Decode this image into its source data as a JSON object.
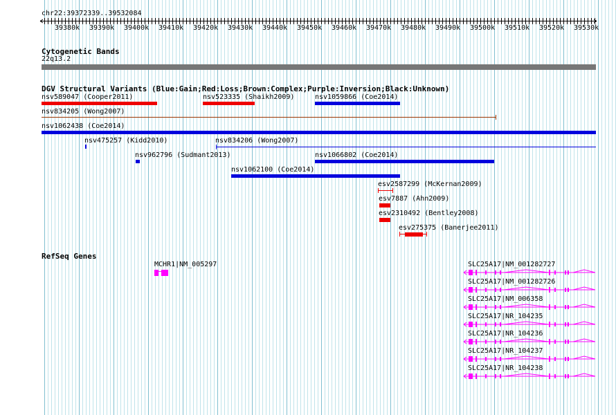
{
  "coords_label": "chr22:39372339..39532084",
  "ruler_ticks": [
    "39380k",
    "39390k",
    "39400k",
    "39410k",
    "39420k",
    "39430k",
    "39440k",
    "39450k",
    "39460k",
    "39470k",
    "39480k",
    "39490k",
    "39500k",
    "39510k",
    "39520k",
    "39530k"
  ],
  "cyto": {
    "title": "Cytogenetic Bands",
    "band": "22q13.2"
  },
  "dgv": {
    "title": "DGV Structural Variants (Blue:Gain;Red:Loss;Brown:Complex;Purple:Inversion;Black:Unknown)",
    "variants": [
      {
        "label": "nsv589047 (Cooper2011)",
        "type": "loss"
      },
      {
        "label": "nsv523335 (Shaikh2009)",
        "type": "loss"
      },
      {
        "label": "nsv1059866 (Coe2014)",
        "type": "gain"
      },
      {
        "label": "nsv834205 (Wong2007)",
        "type": "complex"
      },
      {
        "label": "nsv1062438 (Coe2014)",
        "type": "gain"
      },
      {
        "label": "nsv475257 (Kidd2010)",
        "type": "gain"
      },
      {
        "label": "nsv834206 (Wong2007)",
        "type": "gain"
      },
      {
        "label": "nsv962796 (Sudmant2013)",
        "type": "gain"
      },
      {
        "label": "nsv1066802 (Coe2014)",
        "type": "gain"
      },
      {
        "label": "nsv1062100 (Coe2014)",
        "type": "gain"
      },
      {
        "label": "esv2587299 (McKernan2009)",
        "type": "loss"
      },
      {
        "label": "esv7887 (Ahn2009)",
        "type": "loss"
      },
      {
        "label": "esv2310492 (Bentley2008)",
        "type": "loss"
      },
      {
        "label": "esv275375 (Banerjee2011)",
        "type": "loss"
      }
    ]
  },
  "refseq": {
    "title": "RefSeq Genes",
    "genes": [
      {
        "label": "MCHR1|NM_005297"
      },
      {
        "label": "SLC25A17|NM_001282727"
      },
      {
        "label": "SLC25A17|NM_001282726"
      },
      {
        "label": "SLC25A17|NM_006358"
      },
      {
        "label": "SLC25A17|NR_104235"
      },
      {
        "label": "SLC25A17|NR_104236"
      },
      {
        "label": "SLC25A17|NR_104237"
      },
      {
        "label": "SLC25A17|NR_104238"
      }
    ]
  },
  "colors": {
    "grid_minor": "#bfe3ea",
    "grid_major": "#7fbfd0",
    "gain": "#0000dd",
    "loss": "#ee0000",
    "complex": "#993300",
    "gene": "#ff00ff",
    "band": "#777777"
  }
}
